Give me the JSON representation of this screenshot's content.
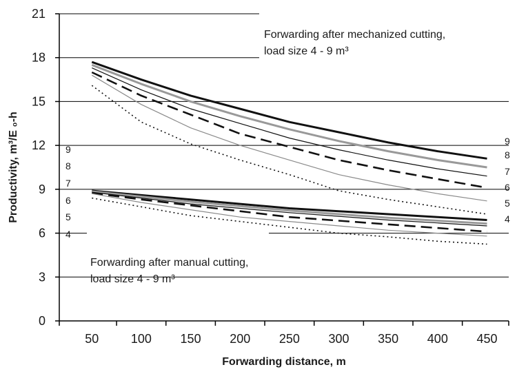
{
  "chart_data": {
    "type": "line",
    "xlabel": "Forwarding distance, m",
    "ylabel": "Productivity, m³/E ₀-h",
    "ylim": [
      0,
      21
    ],
    "xlim": [
      50,
      450
    ],
    "x_ticks": [
      "50",
      "100",
      "150",
      "200",
      "250",
      "300",
      "350",
      "400",
      "450"
    ],
    "y_ticks": [
      "0",
      "3",
      "6",
      "9",
      "12",
      "15",
      "18",
      "21"
    ],
    "grid": "horizontal",
    "annotations": [
      {
        "id": "mechanized",
        "lines": [
          "Forwarding after mechanized cutting,",
          "load size 4 - 9 m³"
        ]
      },
      {
        "id": "manual",
        "lines": [
          "Forwarding after manual cutting,",
          "load size 4 - 9 m³"
        ]
      }
    ],
    "left_labels": [
      "9",
      "8",
      "7",
      "6",
      "5",
      "4"
    ],
    "groups": [
      {
        "name": "mechanized",
        "x": [
          50,
          100,
          150,
          200,
          250,
          300,
          350,
          400,
          450
        ],
        "series": [
          {
            "name": "9",
            "style": "thick-black",
            "values": [
              17.7,
              16.5,
              15.4,
              14.5,
              13.6,
              12.9,
              12.2,
              11.6,
              11.1
            ]
          },
          {
            "name": "8",
            "style": "thick-gray",
            "values": [
              17.5,
              16.2,
              15.0,
              14.0,
              13.1,
              12.3,
              11.6,
              11.0,
              10.5
            ]
          },
          {
            "name": "7",
            "style": "thin-black",
            "values": [
              17.3,
              15.8,
              14.5,
              13.5,
              12.5,
              11.7,
              11.0,
              10.4,
              9.9
            ]
          },
          {
            "name": "6",
            "style": "dashed-black",
            "values": [
              17.0,
              15.4,
              14.1,
              12.8,
              11.9,
              11.0,
              10.3,
              9.7,
              9.1
            ]
          },
          {
            "name": "5",
            "style": "thin-gray",
            "values": [
              16.8,
              14.8,
              13.2,
              12.0,
              11.0,
              10.0,
              9.3,
              8.7,
              8.2
            ]
          },
          {
            "name": "4",
            "style": "dotted-black",
            "values": [
              16.1,
              13.6,
              12.1,
              11.0,
              10.0,
              8.9,
              8.3,
              7.8,
              7.3
            ]
          }
        ]
      },
      {
        "name": "manual",
        "x": [
          50,
          100,
          150,
          200,
          250,
          300,
          350,
          400,
          450
        ],
        "series": [
          {
            "name": "9",
            "style": "thick-black",
            "values": [
              8.9,
              8.6,
              8.3,
              8.0,
              7.7,
              7.5,
              7.3,
              7.1,
              6.9
            ]
          },
          {
            "name": "8",
            "style": "thick-gray",
            "values": [
              8.85,
              8.5,
              8.15,
              7.85,
              7.55,
              7.3,
              7.05,
              6.85,
              6.65
            ]
          },
          {
            "name": "7",
            "style": "thin-black",
            "values": [
              8.8,
              8.4,
              8.0,
              7.7,
              7.4,
              7.15,
              6.9,
              6.7,
              6.5
            ]
          },
          {
            "name": "6",
            "style": "dashed-black",
            "values": [
              8.75,
              8.3,
              7.9,
              7.5,
              7.1,
              6.85,
              6.6,
              6.35,
              6.1
            ]
          },
          {
            "name": "5",
            "style": "thin-gray",
            "values": [
              8.7,
              8.1,
              7.6,
              7.1,
              6.8,
              6.5,
              6.2,
              6.0,
              5.8
            ]
          },
          {
            "name": "4",
            "style": "dotted-black",
            "values": [
              8.4,
              7.8,
              7.2,
              6.8,
              6.4,
              6.0,
              5.75,
              5.45,
              5.25
            ]
          }
        ]
      }
    ]
  }
}
